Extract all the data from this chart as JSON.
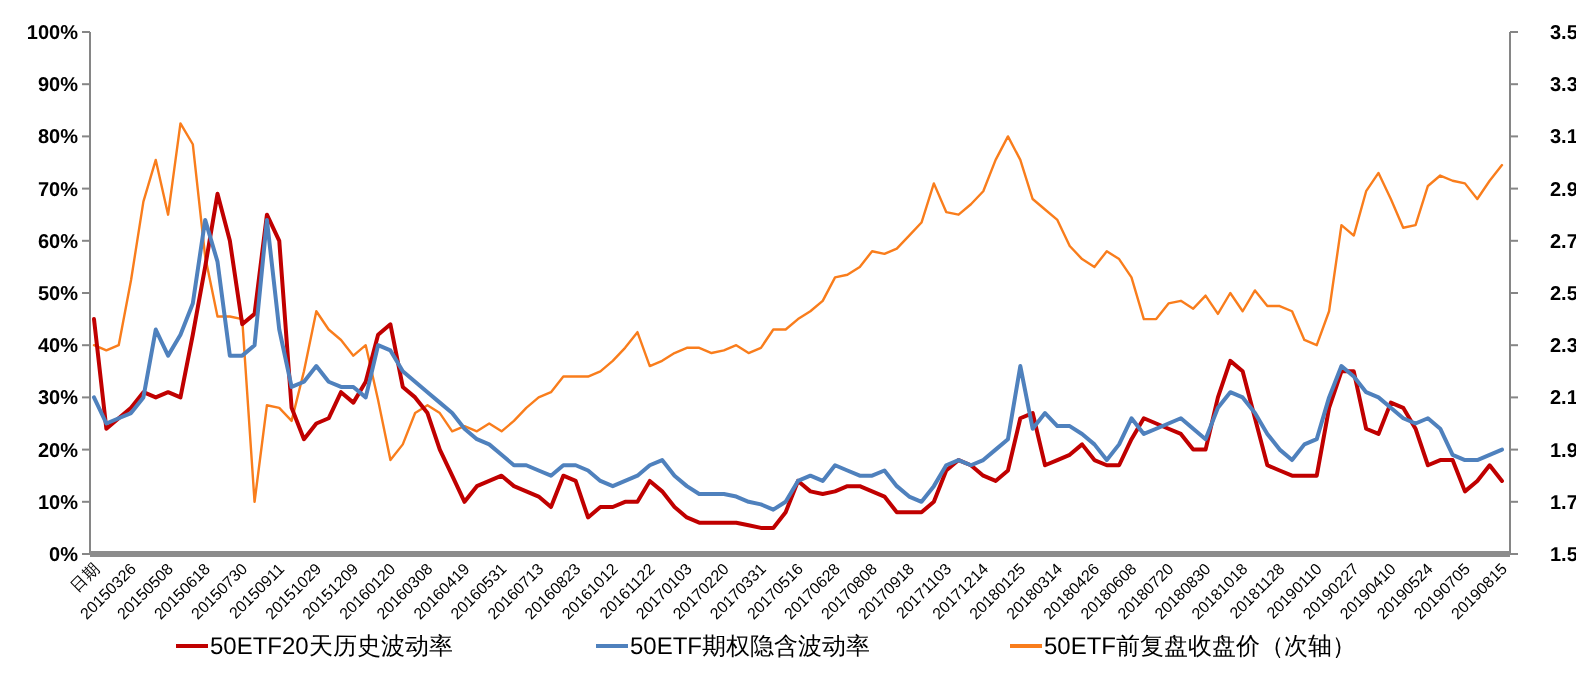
{
  "chart_data": {
    "type": "line",
    "categories": [
      "日期",
      null,
      null,
      "20150326",
      null,
      null,
      "20150508",
      null,
      null,
      "20150618",
      null,
      null,
      "20150730",
      null,
      null,
      "20150911",
      null,
      null,
      "20151029",
      null,
      null,
      "20151209",
      null,
      null,
      "20160120",
      null,
      null,
      "20160308",
      null,
      null,
      "20160419",
      null,
      null,
      "20160531",
      null,
      null,
      "20160713",
      null,
      null,
      "20160823",
      null,
      null,
      "20161012",
      null,
      null,
      "20161122",
      null,
      null,
      "20170103",
      null,
      null,
      "20170220",
      null,
      null,
      "20170331",
      null,
      null,
      "20170516",
      null,
      null,
      "20170628",
      null,
      null,
      "20170808",
      null,
      null,
      "20170918",
      null,
      null,
      "20171103",
      null,
      null,
      "20171214",
      null,
      null,
      "20180125",
      null,
      null,
      "20180314",
      null,
      null,
      "20180426",
      null,
      null,
      "20180608",
      null,
      null,
      "20180720",
      null,
      null,
      "20180830",
      null,
      null,
      "20181018",
      null,
      null,
      "20181128",
      null,
      null,
      "20190110",
      null,
      null,
      "20190227",
      null,
      null,
      "20190410",
      null,
      null,
      "20190524",
      null,
      null,
      "20190705",
      null,
      null,
      "20190815"
    ],
    "series": [
      {
        "name": "50ETF20天历史波动率",
        "color": "#c00000",
        "values": [
          45,
          24,
          26,
          28,
          31,
          30,
          31,
          30,
          42,
          55,
          69,
          60,
          44,
          46,
          65,
          60,
          28,
          22,
          25,
          26,
          31,
          29,
          33,
          42,
          44,
          32,
          30,
          27,
          20,
          15,
          10,
          13,
          14,
          15,
          13,
          12,
          11,
          9,
          15,
          14,
          7,
          9,
          9,
          10,
          10,
          14,
          12,
          9,
          7,
          6,
          6,
          6,
          6,
          5.5,
          5,
          5,
          8,
          14,
          12,
          11.5,
          12,
          13,
          13,
          12,
          11,
          8,
          8,
          8,
          10,
          16,
          18,
          17,
          15,
          14,
          16,
          26,
          27,
          17,
          18,
          19,
          21,
          18,
          17,
          17,
          22,
          26,
          25,
          24,
          23,
          20,
          20,
          30,
          37,
          35,
          26,
          17,
          16,
          15,
          15,
          15,
          28,
          35,
          35,
          24,
          23,
          29,
          28,
          24,
          17,
          18,
          18,
          12,
          14,
          17,
          14
        ]
      },
      {
        "name": "50ETF期权隐含波动率",
        "color": "#4f81bd",
        "values": [
          30,
          25,
          26,
          27,
          30,
          43,
          38,
          42,
          48,
          64,
          56,
          38,
          38,
          40,
          64,
          43,
          32,
          33,
          36,
          33,
          32,
          32,
          30,
          40,
          39,
          35,
          33,
          31,
          29,
          27,
          24,
          22,
          21,
          19,
          17,
          17,
          16,
          15,
          17,
          17,
          16,
          14,
          13,
          14,
          15,
          17,
          18,
          15,
          13,
          11.5,
          11.5,
          11.5,
          11,
          10,
          9.5,
          8.5,
          10,
          14,
          15,
          14,
          17,
          16,
          15,
          15,
          16,
          13,
          11,
          10,
          13,
          17,
          18,
          17,
          18,
          20,
          22,
          36,
          24,
          27,
          24.5,
          24.5,
          23,
          21,
          18,
          21,
          26,
          23,
          24,
          25,
          26,
          24,
          22,
          28,
          31,
          30,
          27,
          23,
          20,
          18,
          21,
          22,
          30,
          36,
          34,
          31,
          30,
          28,
          26,
          25,
          26,
          24,
          19,
          18,
          18,
          19,
          20
        ]
      },
      {
        "name": "50ETF前复盘收盘价（次轴）",
        "color": "#f97d1c",
        "axis": "y2",
        "values": [
          2.3,
          2.28,
          2.3,
          2.55,
          2.85,
          3.01,
          2.8,
          3.15,
          3.07,
          2.64,
          2.41,
          2.41,
          2.4,
          1.7,
          2.07,
          2.06,
          2.01,
          2.2,
          2.43,
          2.36,
          2.32,
          2.26,
          2.3,
          2.09,
          1.86,
          1.92,
          2.04,
          2.07,
          2.04,
          1.97,
          1.99,
          1.97,
          2.0,
          1.97,
          2.01,
          2.06,
          2.1,
          2.12,
          2.18,
          2.18,
          2.18,
          2.2,
          2.24,
          2.29,
          2.35,
          2.22,
          2.24,
          2.27,
          2.29,
          2.29,
          2.27,
          2.28,
          2.3,
          2.27,
          2.29,
          2.36,
          2.36,
          2.4,
          2.43,
          2.47,
          2.56,
          2.57,
          2.6,
          2.66,
          2.65,
          2.67,
          2.72,
          2.77,
          2.92,
          2.81,
          2.8,
          2.84,
          2.89,
          3.01,
          3.1,
          3.01,
          2.86,
          2.82,
          2.78,
          2.68,
          2.63,
          2.6,
          2.66,
          2.63,
          2.56,
          2.4,
          2.4,
          2.46,
          2.47,
          2.44,
          2.49,
          2.42,
          2.5,
          2.43,
          2.51,
          2.45,
          2.45,
          2.43,
          2.32,
          2.3,
          2.43,
          2.76,
          2.72,
          2.89,
          2.96,
          2.86,
          2.75,
          2.76,
          2.91,
          2.95,
          2.93,
          2.92,
          2.86,
          2.93,
          2.99
        ]
      }
    ],
    "ylim": [
      0,
      100
    ],
    "yticks": [
      {
        "value": 0,
        "label": "0%"
      },
      {
        "value": 10,
        "label": "10%"
      },
      {
        "value": 20,
        "label": "20%"
      },
      {
        "value": 30,
        "label": "30%"
      },
      {
        "value": 40,
        "label": "40%"
      },
      {
        "value": 50,
        "label": "50%"
      },
      {
        "value": 60,
        "label": "60%"
      },
      {
        "value": 70,
        "label": "70%"
      },
      {
        "value": 80,
        "label": "80%"
      },
      {
        "value": 90,
        "label": "90%"
      },
      {
        "value": 100,
        "label": "100%"
      }
    ],
    "y2lim": [
      1.5,
      3.5
    ],
    "y2ticks": [
      1.5,
      1.7,
      1.9,
      2.1,
      2.3,
      2.5,
      2.7,
      2.9,
      3.1,
      3.3,
      3.5
    ],
    "grid": false,
    "legend": "bottom"
  }
}
